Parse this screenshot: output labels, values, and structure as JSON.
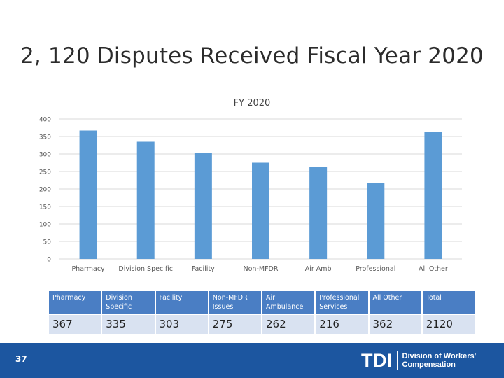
{
  "slide": {
    "title": "2, 120 Disputes Received Fiscal Year 2020",
    "page_number": "37"
  },
  "chart_data": {
    "type": "bar",
    "title": "FY 2020",
    "categories": [
      "Pharmacy",
      "Division Specific",
      "Facility",
      "Non-MFDR",
      "Air Amb",
      "Professional",
      "All Other"
    ],
    "series": [
      {
        "name": "FY 2020",
        "values": [
          367,
          335,
          303,
          275,
          262,
          216,
          362
        ]
      }
    ],
    "ylim": [
      0,
      400
    ],
    "yticks": [
      0,
      50,
      100,
      150,
      200,
      250,
      300,
      350,
      400
    ],
    "grid": true,
    "bar_color": "#5b9bd5"
  },
  "table": {
    "headers": [
      "Pharmacy",
      "Division Specific",
      "Facility",
      "Non-MFDR Issues",
      "Air Ambulance",
      "Professional Services",
      "All Other",
      "Total"
    ],
    "values": [
      "367",
      "335",
      "303",
      "275",
      "262",
      "216",
      "362",
      "2120"
    ]
  },
  "footer": {
    "logo_mark": "TDI",
    "logo_line1": "Division of Workers'",
    "logo_line2": "Compensation",
    "color": "#1c56a0"
  }
}
